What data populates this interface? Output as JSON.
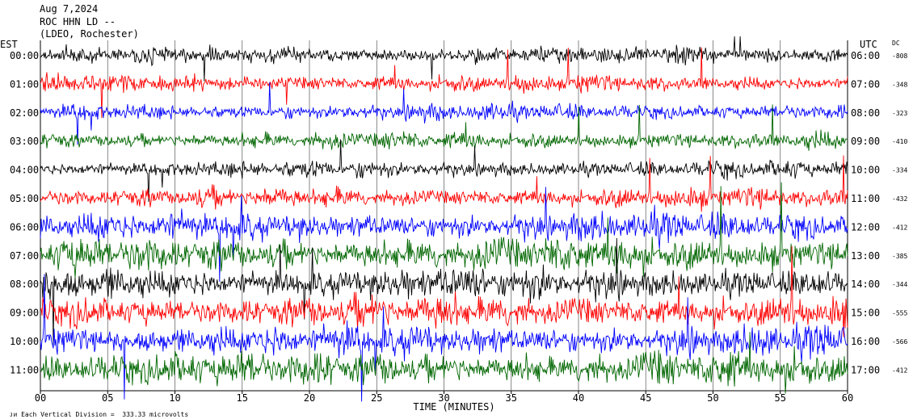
{
  "header": {
    "date": "Aug 7,2024",
    "station": "ROC HHN LD --",
    "network": "(LDEO, Rochester)"
  },
  "left_timezone": "EST",
  "right_timezone": "UTC",
  "dc_label": "DC",
  "footer_text": "Each Vertical Division =  333.33 microvolts",
  "chart_data": {
    "type": "line",
    "title": "",
    "xlabel": "TIME (MINUTES)",
    "xlim": [
      0,
      60
    ],
    "x_ticks": [
      "00",
      "05",
      "10",
      "15",
      "20",
      "25",
      "30",
      "35",
      "40",
      "45",
      "50",
      "55",
      "60"
    ],
    "grid": "vertical lines every 5 minutes",
    "series": [
      {
        "left_label": "00:00",
        "right_label": "06:00",
        "dc": "-808",
        "color": "#000000",
        "noise_level": 0.35
      },
      {
        "left_label": "01:00",
        "right_label": "07:00",
        "dc": "-348",
        "color": "#ff0000",
        "noise_level": 0.35
      },
      {
        "left_label": "02:00",
        "right_label": "08:00",
        "dc": "-323",
        "color": "#0000ff",
        "noise_level": 0.35
      },
      {
        "left_label": "03:00",
        "right_label": "09:00",
        "dc": "-410",
        "color": "#006600",
        "noise_level": 0.35
      },
      {
        "left_label": "04:00",
        "right_label": "10:00",
        "dc": "-334",
        "color": "#000000",
        "noise_level": 0.35
      },
      {
        "left_label": "05:00",
        "right_label": "11:00",
        "dc": "-432",
        "color": "#ff0000",
        "noise_level": 0.45
      },
      {
        "left_label": "06:00",
        "right_label": "12:00",
        "dc": "-412",
        "color": "#0000ff",
        "noise_level": 0.75
      },
      {
        "left_label": "07:00",
        "right_label": "13:00",
        "dc": "-385",
        "color": "#006600",
        "noise_level": 0.95
      },
      {
        "left_label": "08:00",
        "right_label": "14:00",
        "dc": "-344",
        "color": "#000000",
        "noise_level": 0.9
      },
      {
        "left_label": "09:00",
        "right_label": "15:00",
        "dc": "-555",
        "color": "#ff0000",
        "noise_level": 0.9
      },
      {
        "left_label": "10:00",
        "right_label": "16:00",
        "dc": "-566",
        "color": "#0000ff",
        "noise_level": 0.85
      },
      {
        "left_label": "11:00",
        "right_label": "17:00",
        "dc": "-412",
        "color": "#006600",
        "noise_level": 0.95
      }
    ]
  }
}
